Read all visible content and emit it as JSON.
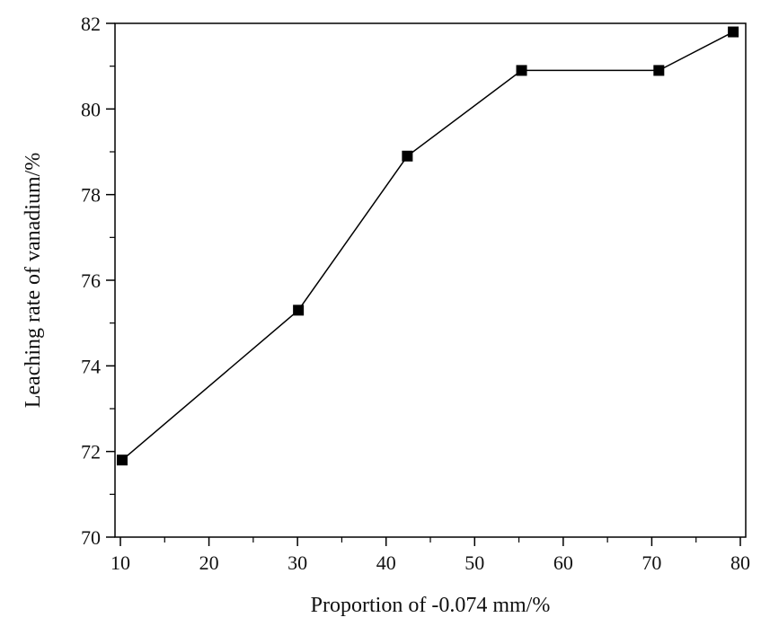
{
  "chart_data": {
    "type": "line",
    "title": "",
    "xlabel": "Proportion of -0.074 mm/%",
    "ylabel": "Leaching rate of vanadium/%",
    "xlim": [
      10,
      80
    ],
    "ylim": [
      70,
      82
    ],
    "x_ticks": [
      10,
      20,
      30,
      40,
      50,
      60,
      70,
      80
    ],
    "y_ticks": [
      70,
      72,
      74,
      76,
      78,
      80,
      82
    ],
    "x_minor_step": 5,
    "y_minor_step": 1,
    "grid": false,
    "legend": "none",
    "series": [
      {
        "marker": "square",
        "color": "#000000",
        "x": [
          10.2,
          30.1,
          42.4,
          55.3,
          70.8,
          79.2
        ],
        "y": [
          71.8,
          75.3,
          78.9,
          80.9,
          80.9,
          81.8
        ]
      }
    ]
  }
}
